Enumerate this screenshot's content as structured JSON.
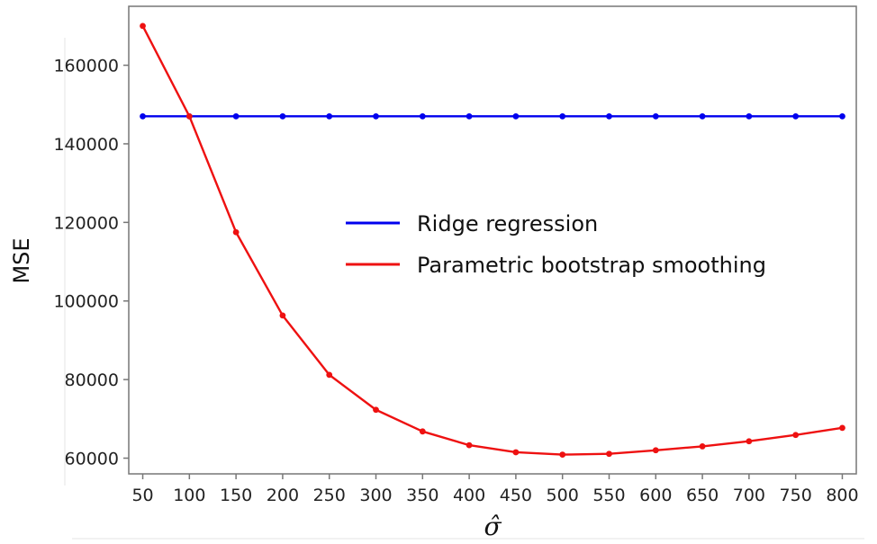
{
  "chart_data": {
    "type": "line",
    "xlabel": "σ̂",
    "ylabel": "MSE",
    "x": [
      50,
      100,
      150,
      200,
      250,
      300,
      350,
      400,
      450,
      500,
      550,
      600,
      650,
      700,
      750,
      800
    ],
    "x_ticks": [
      "50",
      "100",
      "150",
      "200",
      "250",
      "300",
      "350",
      "400",
      "450",
      "500",
      "550",
      "600",
      "650",
      "700",
      "750",
      "800"
    ],
    "y_ticks": [
      60000,
      80000,
      100000,
      120000,
      140000,
      160000
    ],
    "y_tick_labels": [
      "60000",
      "80000",
      "100000",
      "120000",
      "140000",
      "160000"
    ],
    "xlim": [
      35,
      815
    ],
    "ylim": [
      56000,
      175000
    ],
    "grid": false,
    "legend_position": "center-right",
    "series": [
      {
        "name": "Ridge regression",
        "color": "#0000ee",
        "values": [
          147000,
          147000,
          147000,
          147000,
          147000,
          147000,
          147000,
          147000,
          147000,
          147000,
          147000,
          147000,
          147000,
          147000,
          147000,
          147000
        ]
      },
      {
        "name": "Parametric bootstrap smoothing",
        "color": "#ee1111",
        "values": [
          170000,
          147000,
          117500,
          96300,
          81200,
          72300,
          66800,
          63300,
          61500,
          60900,
          61100,
          62000,
          63000,
          64300,
          65900,
          67700
        ]
      }
    ]
  }
}
